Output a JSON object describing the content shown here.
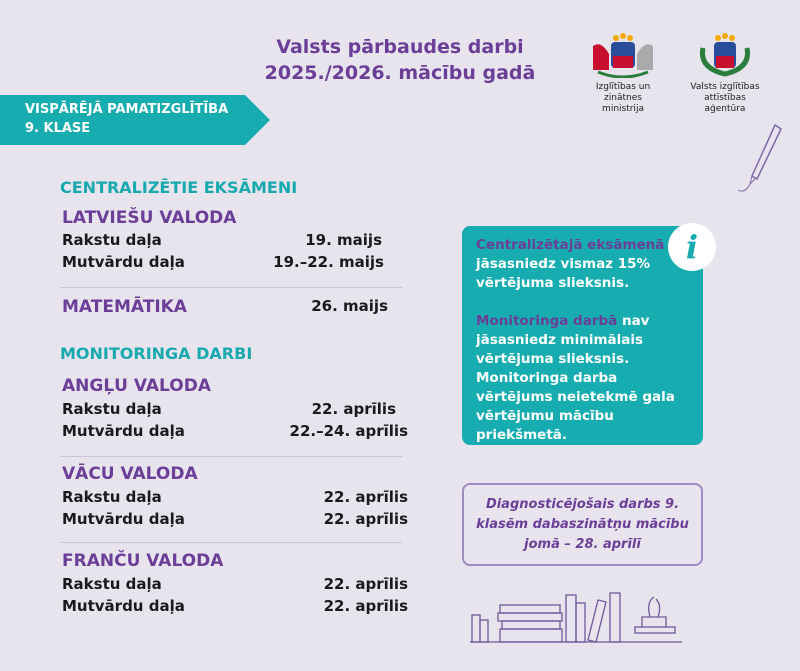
{
  "header": {
    "title_line1": "Valsts pārbaudes darbi",
    "title_line2": "2025./2026. mācību gadā"
  },
  "logos": [
    {
      "name": "Izglītības un zinātnes ministrija",
      "line1": "Izglītības un zinātnes",
      "line2": "ministrija"
    },
    {
      "name": "Valsts izglītības attīstības aģentūra",
      "line1": "Valsts izglītības",
      "line2": "attīstības aģentūra"
    }
  ],
  "banner": {
    "line1": "VISPĀRĒJĀ PAMATIZGLĪTĪBA",
    "line2": "9. KLASE"
  },
  "central": {
    "heading": "CENTRALIZĒTIE EKSĀMENI",
    "latvian": {
      "name": "LATVIEŠU VALODA",
      "rows": [
        {
          "part": "Rakstu daļa",
          "date": "19. maijs"
        },
        {
          "part": "Mutvārdu daļa",
          "date": "19.–22. maijs"
        }
      ]
    },
    "math": {
      "name": "MATEMĀTIKA",
      "date": "26. maijs"
    }
  },
  "monitoring": {
    "heading": "MONITORINGA DARBI",
    "subjects": [
      {
        "name": "ANGĻU VALODA",
        "rows": [
          {
            "part": "Rakstu daļa",
            "date": "22. aprīlis"
          },
          {
            "part": "Mutvārdu daļa",
            "date": "22.–24. aprīlis"
          }
        ]
      },
      {
        "name": "VĀCU VALODA",
        "rows": [
          {
            "part": "Rakstu daļa",
            "date": "22. aprīlis"
          },
          {
            "part": "Mutvārdu daļa",
            "date": "22. aprīlis"
          }
        ]
      },
      {
        "name": "FRANČU VALODA",
        "rows": [
          {
            "part": "Rakstu daļa",
            "date": "22. aprīlis"
          },
          {
            "part": "Mutvārdu daļa",
            "date": "22. aprīlis"
          }
        ]
      }
    ]
  },
  "info": {
    "icon": "info-icon",
    "p1_highlight": "Centralizētajā eksāmenā",
    "p1_rest": "ir jāsasniedz vismaz 15% vērtējuma slieksnis.",
    "p2_highlight": "Monitoringa darbā",
    "p2_rest": "nav jāsasniedz minimālais vērtējuma slieksnis. Monitoringa darba vērtējums neietekmē gala vērtējumu mācību priekšmetā."
  },
  "diagnostic": {
    "text": "Diagnosticējošais darbs 9. klasēm dabaszinātņu mācību jomā – 28. aprīlī"
  },
  "colors": {
    "purple": "#6b3e98",
    "teal": "#17adb0",
    "background": "#e7e4ee"
  }
}
